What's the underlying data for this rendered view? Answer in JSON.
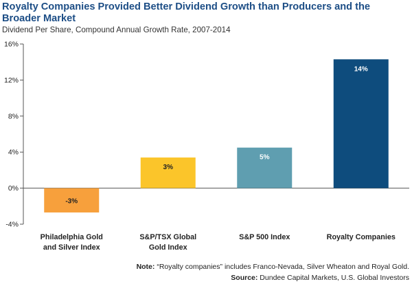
{
  "title": "Royalty Companies Provided Better Dividend Growth than Producers and the Broader Market",
  "subtitle": "Dividend Per Share, Compound Annual Growth Rate, 2007-2014",
  "note_label": "Note:",
  "note_text": " “Royalty companies” includes Franco-Nevada, Silver Wheaton and Royal Gold.",
  "source_label": "Source:",
  "source_text": " Dundee Capital Markets, U.S. Global Investors",
  "chart_data": {
    "type": "bar",
    "categories": [
      [
        "Philadelphia Gold",
        "and Silver Index"
      ],
      [
        "S&P/TSX Global",
        "Gold Index"
      ],
      [
        "S&P 500 Index"
      ],
      [
        "Royalty Companies"
      ]
    ],
    "values": [
      -2.7,
      3.4,
      4.5,
      14.3
    ],
    "data_labels": [
      "-3%",
      "3%",
      "5%",
      "14%"
    ],
    "colors": [
      "#f7a03c",
      "#fbc52a",
      "#5f9eb0",
      "#0e4c7d"
    ],
    "label_colors": [
      "#222222",
      "#222222",
      "#ffffff",
      "#ffffff"
    ],
    "ylim": [
      -4,
      16
    ],
    "yticks": [
      -4,
      0,
      4,
      8,
      12,
      16
    ],
    "ytick_labels": [
      "-4%",
      "0%",
      "4%",
      "8%",
      "12%",
      "16%"
    ],
    "xlabel": "",
    "ylabel": "",
    "grid": false,
    "legend": "none"
  }
}
